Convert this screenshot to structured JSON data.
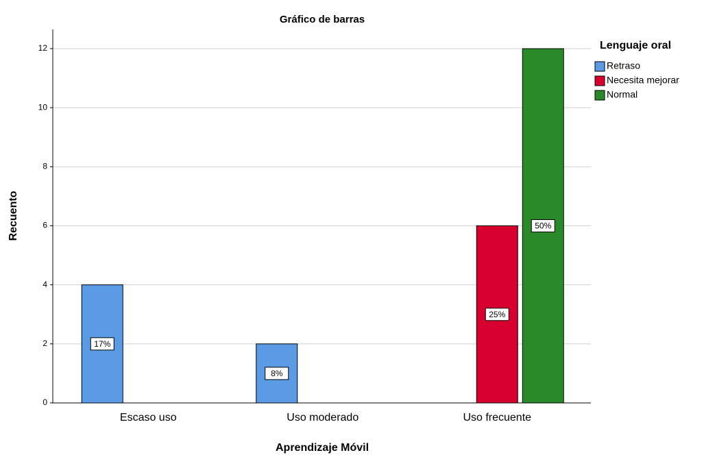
{
  "chart_data": {
    "type": "bar",
    "title": "Gráfico de barras",
    "x_label": "Aprendizaje Móvil",
    "y_label": "Recuento",
    "categories": [
      "Escaso uso",
      "Uso moderado",
      "Uso frecuente"
    ],
    "legend_title": "Lenguaje oral",
    "legend": "right",
    "series": [
      {
        "name": "Retraso",
        "color": "#5b9be6",
        "values": [
          4,
          2,
          null
        ],
        "percents": [
          17,
          8,
          null
        ],
        "percent_labels": [
          "17%",
          "8%",
          null
        ]
      },
      {
        "name": "Necesita mejorar",
        "color": "#d7002e",
        "values": [
          null,
          null,
          6
        ],
        "percents": [
          null,
          null,
          25
        ],
        "percent_labels": [
          null,
          null,
          "25%"
        ]
      },
      {
        "name": "Normal",
        "color": "#2a8a2a",
        "values": [
          null,
          null,
          12
        ],
        "percents": [
          null,
          null,
          50
        ],
        "percent_labels": [
          null,
          null,
          "50%"
        ]
      }
    ],
    "ylim": [
      0,
      12.65
    ],
    "yticks": [
      0,
      2,
      4,
      6,
      8,
      10,
      12
    ],
    "grid": true
  }
}
